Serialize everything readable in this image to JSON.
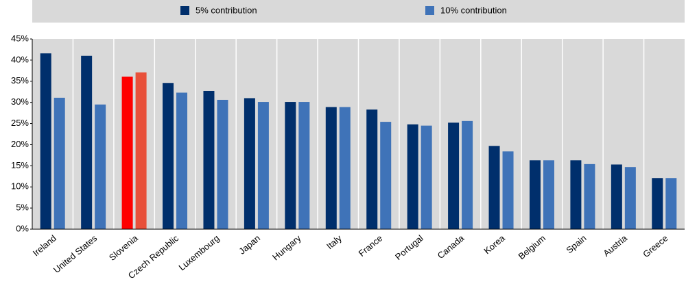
{
  "chart_data": {
    "type": "bar",
    "categories": [
      "Ireland",
      "United States",
      "Slovenia",
      "Czech Republic",
      "Luxembourg",
      "Japan",
      "Hungary",
      "Italy",
      "France",
      "Portugal",
      "Canada",
      "Korea",
      "Belgium",
      "Spain",
      "Austria",
      "Greece"
    ],
    "series": [
      {
        "name": "5% contribution",
        "color": "#002f6c",
        "highlight_color": "#ff0000",
        "values": [
          41.6,
          41.0,
          36.1,
          34.6,
          32.7,
          31.0,
          30.1,
          28.9,
          28.3,
          24.8,
          25.2,
          19.7,
          16.3,
          16.3,
          15.3,
          12.1
        ]
      },
      {
        "name": "10% contribution",
        "color": "#3f73b8",
        "highlight_color": "#e8503a",
        "values": [
          31.1,
          29.5,
          37.1,
          32.3,
          30.6,
          30.1,
          30.1,
          28.9,
          25.4,
          24.5,
          25.6,
          18.4,
          16.3,
          15.4,
          14.7,
          12.1
        ]
      }
    ],
    "highlight": "Slovenia",
    "ylim": [
      0,
      45
    ],
    "yticks": [
      {
        "value": 0,
        "label": "0%"
      },
      {
        "value": 5,
        "label": "5%"
      },
      {
        "value": 10,
        "label": "10%"
      },
      {
        "value": 15,
        "label": "15%"
      },
      {
        "value": 20,
        "label": "20%"
      },
      {
        "value": 25,
        "label": "25%"
      },
      {
        "value": 30,
        "label": "30%"
      },
      {
        "value": 35,
        "label": "35%"
      },
      {
        "value": 40,
        "label": "40%"
      },
      {
        "value": 45,
        "label": "45%"
      }
    ],
    "legend": "top"
  }
}
